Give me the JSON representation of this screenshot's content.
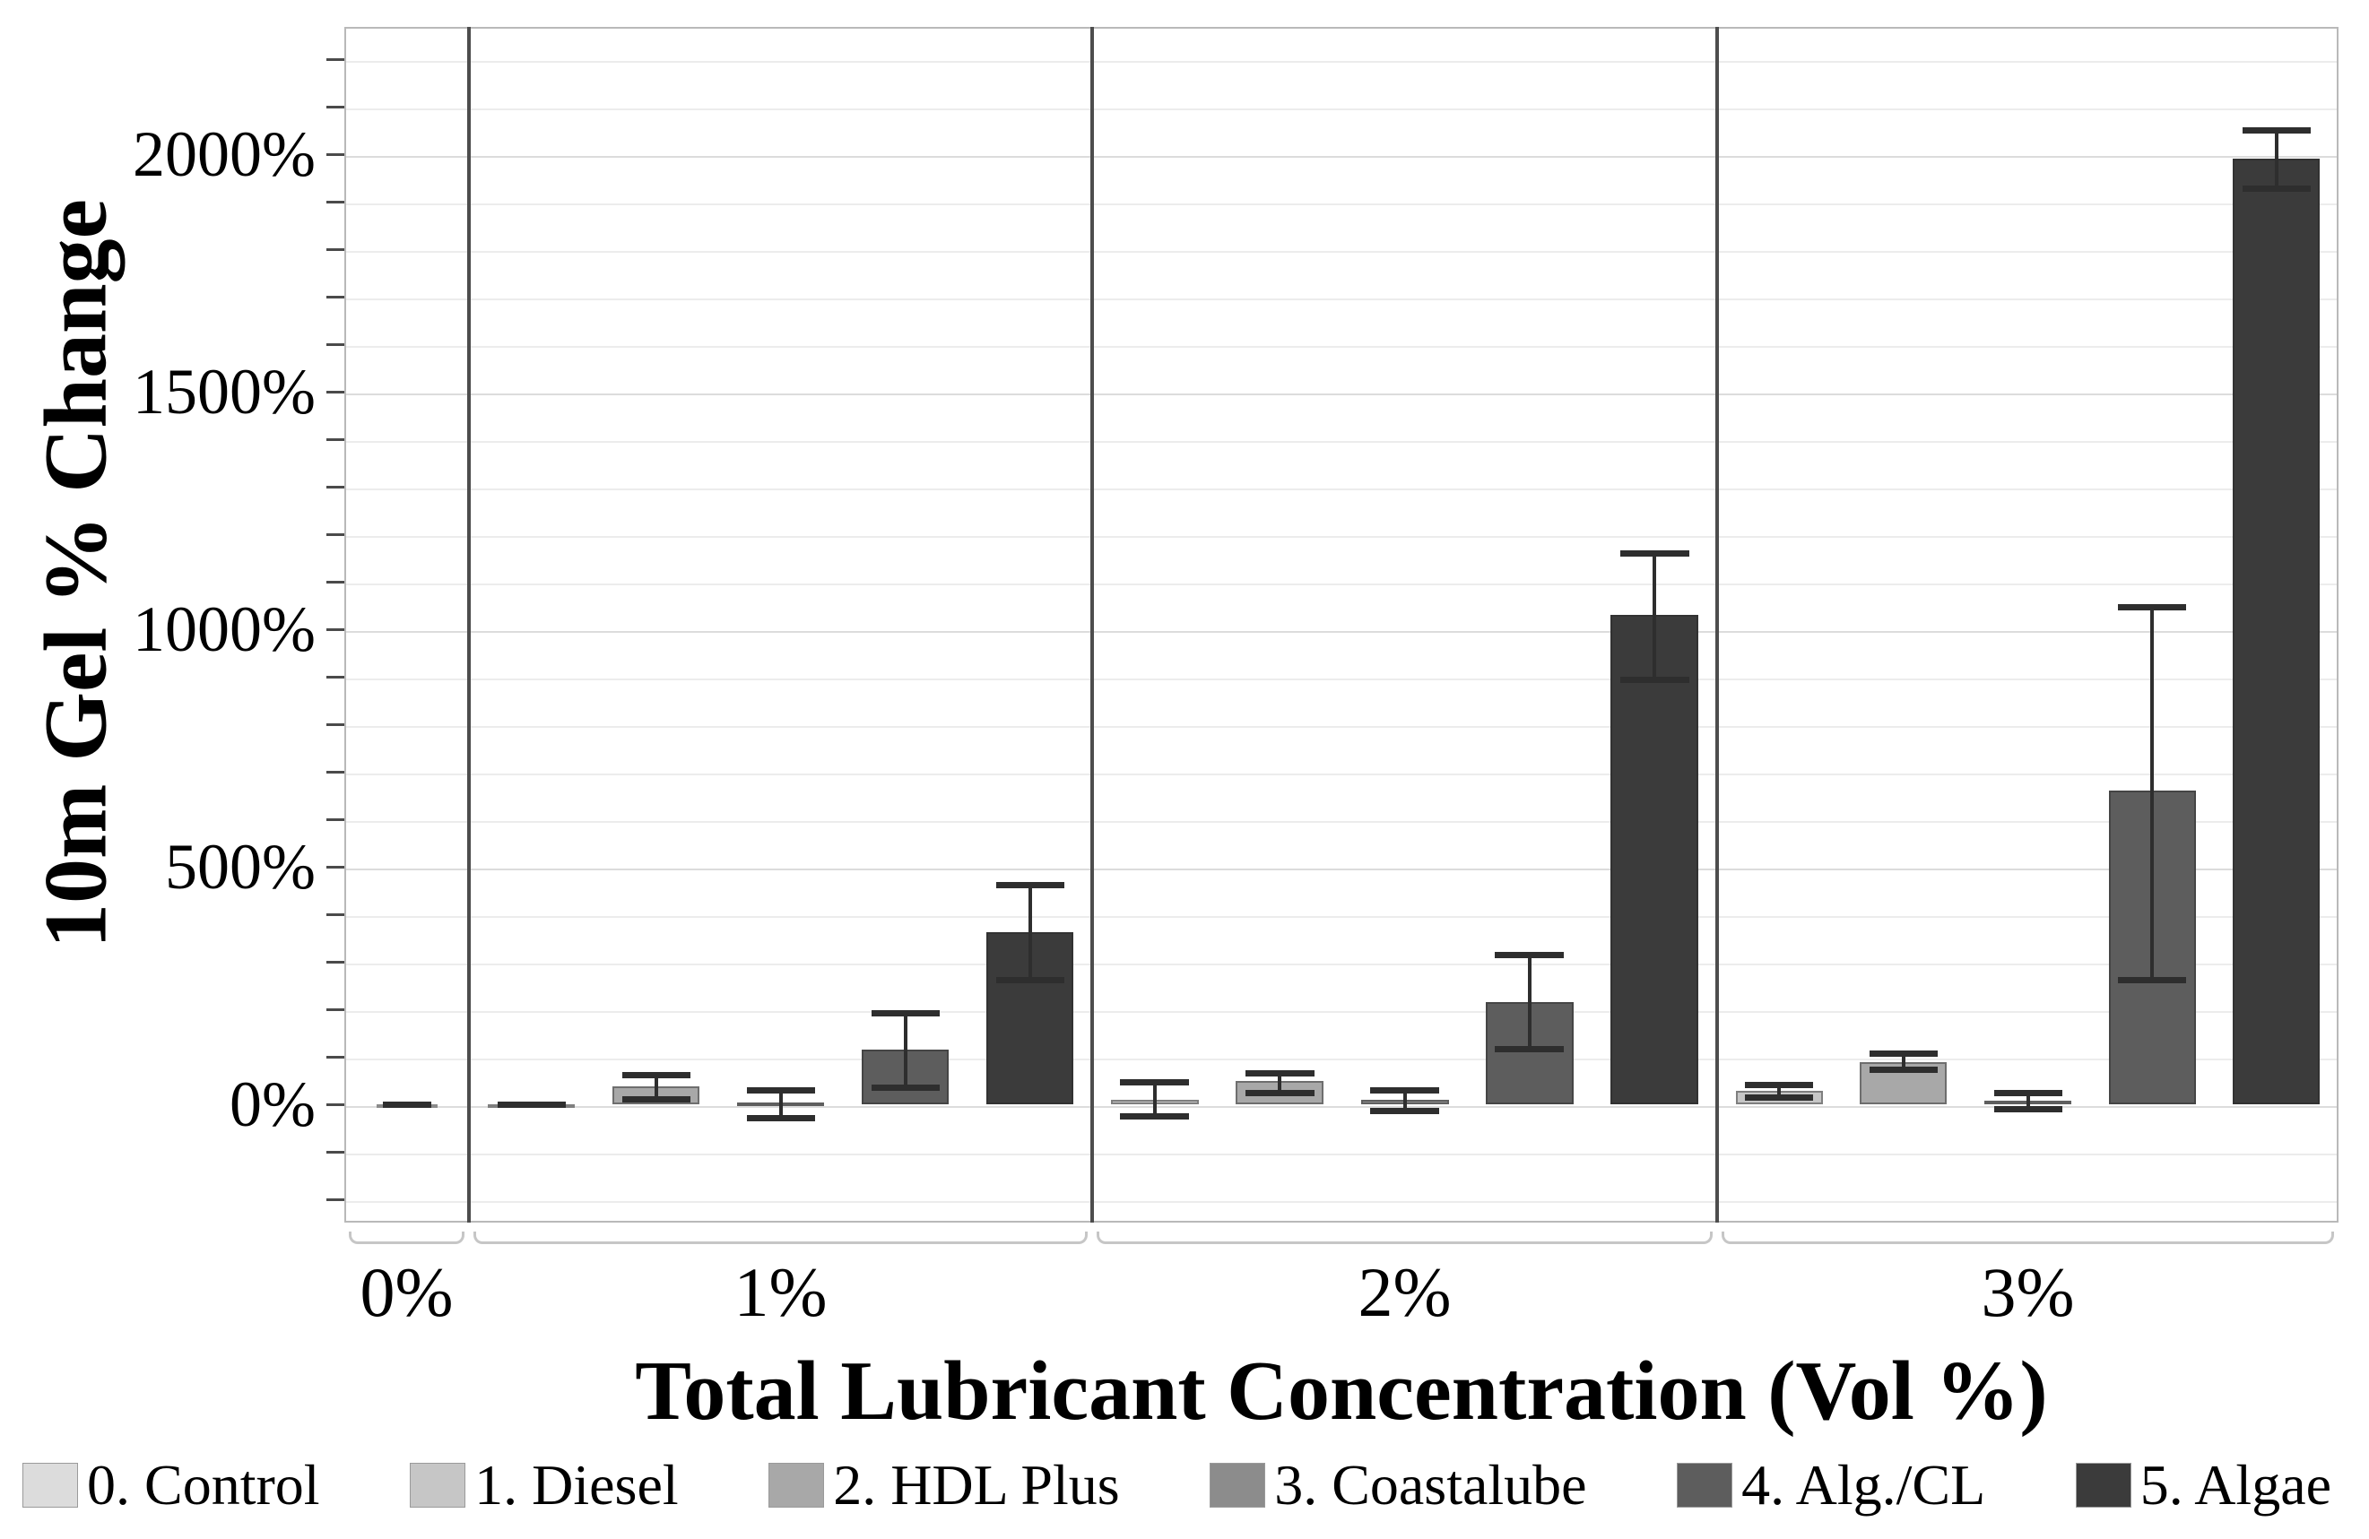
{
  "chart_data": {
    "type": "bar",
    "title": "",
    "xlabel": "Total Lubricant Concentration (Vol %)",
    "ylabel": "10m Gel % Change",
    "legend_position": "bottom",
    "grid": true,
    "y_axis": {
      "tick_values": [
        0,
        500,
        1000,
        1500,
        2000
      ],
      "tick_labels": [
        "0%",
        "500%",
        "1000%",
        "1500%",
        "2000%"
      ],
      "minor_step": 100,
      "ylim": [
        -250,
        2270
      ],
      "unit": "percent"
    },
    "series": [
      {
        "name": "0. Control",
        "color": "#dcdcdc"
      },
      {
        "name": "1. Diesel",
        "color": "#c6c6c6"
      },
      {
        "name": "2. HDL Plus",
        "color": "#a8a8a8"
      },
      {
        "name": "3. Coastalube",
        "color": "#8c8c8c"
      },
      {
        "name": "4. Alg./CL",
        "color": "#5d5d5d"
      },
      {
        "name": "5. Algae",
        "color": "#3b3b3b"
      }
    ],
    "facets": [
      {
        "label": "0%",
        "bars": [
          {
            "series": 0,
            "value": 0,
            "err_lo": 0,
            "err_hi": 0
          }
        ]
      },
      {
        "label": "1%",
        "bars": [
          {
            "series": 1,
            "value": 0,
            "err_lo": 0,
            "err_hi": 0
          },
          {
            "series": 2,
            "value": 38,
            "err_lo": 11,
            "err_hi": 62
          },
          {
            "series": 3,
            "value": 3,
            "err_lo": -28,
            "err_hi": 30
          },
          {
            "series": 4,
            "value": 115,
            "err_lo": 36,
            "err_hi": 192
          },
          {
            "series": 5,
            "value": 362,
            "err_lo": 262,
            "err_hi": 462
          }
        ]
      },
      {
        "label": "2%",
        "bars": [
          {
            "series": 1,
            "value": 10,
            "err_lo": -25,
            "err_hi": 47
          },
          {
            "series": 2,
            "value": 49,
            "err_lo": 25,
            "err_hi": 66
          },
          {
            "series": 3,
            "value": 9,
            "err_lo": -13,
            "err_hi": 30
          },
          {
            "series": 4,
            "value": 215,
            "err_lo": 117,
            "err_hi": 315
          },
          {
            "series": 5,
            "value": 1030,
            "err_lo": 895,
            "err_hi": 1160
          }
        ]
      },
      {
        "label": "3%",
        "bars": [
          {
            "series": 1,
            "value": 28,
            "err_lo": 15,
            "err_hi": 41
          },
          {
            "series": 2,
            "value": 89,
            "err_lo": 74,
            "err_hi": 108
          },
          {
            "series": 3,
            "value": 8,
            "err_lo": -9,
            "err_hi": 25
          },
          {
            "series": 4,
            "value": 660,
            "err_lo": 262,
            "err_hi": 1047
          },
          {
            "series": 5,
            "value": 1990,
            "err_lo": 1928,
            "err_hi": 2051
          }
        ]
      }
    ]
  }
}
